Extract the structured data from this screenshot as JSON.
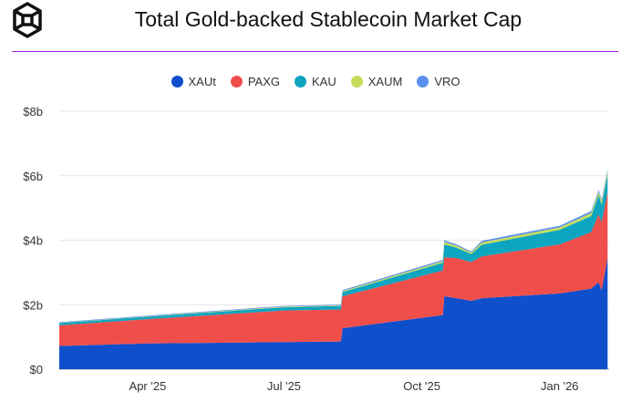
{
  "title": "Total Gold-backed Stablecoin Market Cap",
  "chart_data": {
    "type": "area",
    "stacked": true,
    "title": "Total Gold-backed Stablecoin Market Cap",
    "xlabel": "",
    "ylabel": "",
    "ylim": [
      0,
      8
    ],
    "yticks": [
      {
        "v": 0,
        "label": "$0"
      },
      {
        "v": 2,
        "label": "$2b"
      },
      {
        "v": 4,
        "label": "$4b"
      },
      {
        "v": 6,
        "label": "$6b"
      },
      {
        "v": 8,
        "label": "$8b"
      }
    ],
    "x_unit": "days since 2025-02-01",
    "xlim": [
      0,
      367
    ],
    "xticks": [
      {
        "v": 59,
        "label": "Apr '25"
      },
      {
        "v": 150,
        "label": "Jul '25"
      },
      {
        "v": 242,
        "label": "Oct '25"
      },
      {
        "v": 334,
        "label": "Jan '26"
      }
    ],
    "legend_position": "top",
    "x": [
      0,
      59,
      150,
      188,
      189,
      256,
      257,
      265,
      275,
      282,
      334,
      355,
      360,
      362,
      366
    ],
    "series": [
      {
        "name": "XAUt",
        "color": "#0f4fcc",
        "values": [
          0.72,
          0.8,
          0.84,
          0.86,
          1.27,
          1.68,
          2.26,
          2.2,
          2.12,
          2.2,
          2.35,
          2.5,
          2.7,
          2.45,
          3.45
        ]
      },
      {
        "name": "PAXG",
        "color": "#f04e4b",
        "values": [
          0.64,
          0.75,
          0.98,
          0.99,
          0.99,
          1.38,
          1.21,
          1.25,
          1.2,
          1.3,
          1.52,
          1.75,
          2.1,
          2.1,
          2.05
        ]
      },
      {
        "name": "KAU",
        "color": "#0ea5c0",
        "values": [
          0.07,
          0.08,
          0.1,
          0.11,
          0.13,
          0.24,
          0.4,
          0.32,
          0.25,
          0.36,
          0.45,
          0.5,
          0.6,
          0.55,
          0.55
        ]
      },
      {
        "name": "XAUM",
        "color": "#c5dd5a",
        "values": [
          0.01,
          0.01,
          0.02,
          0.02,
          0.03,
          0.05,
          0.08,
          0.06,
          0.05,
          0.07,
          0.08,
          0.09,
          0.1,
          0.1,
          0.1
        ]
      },
      {
        "name": "VRO",
        "color": "#5b8ff0",
        "values": [
          0.02,
          0.02,
          0.02,
          0.02,
          0.03,
          0.04,
          0.05,
          0.04,
          0.03,
          0.05,
          0.05,
          0.06,
          0.06,
          0.06,
          0.06
        ]
      }
    ]
  }
}
